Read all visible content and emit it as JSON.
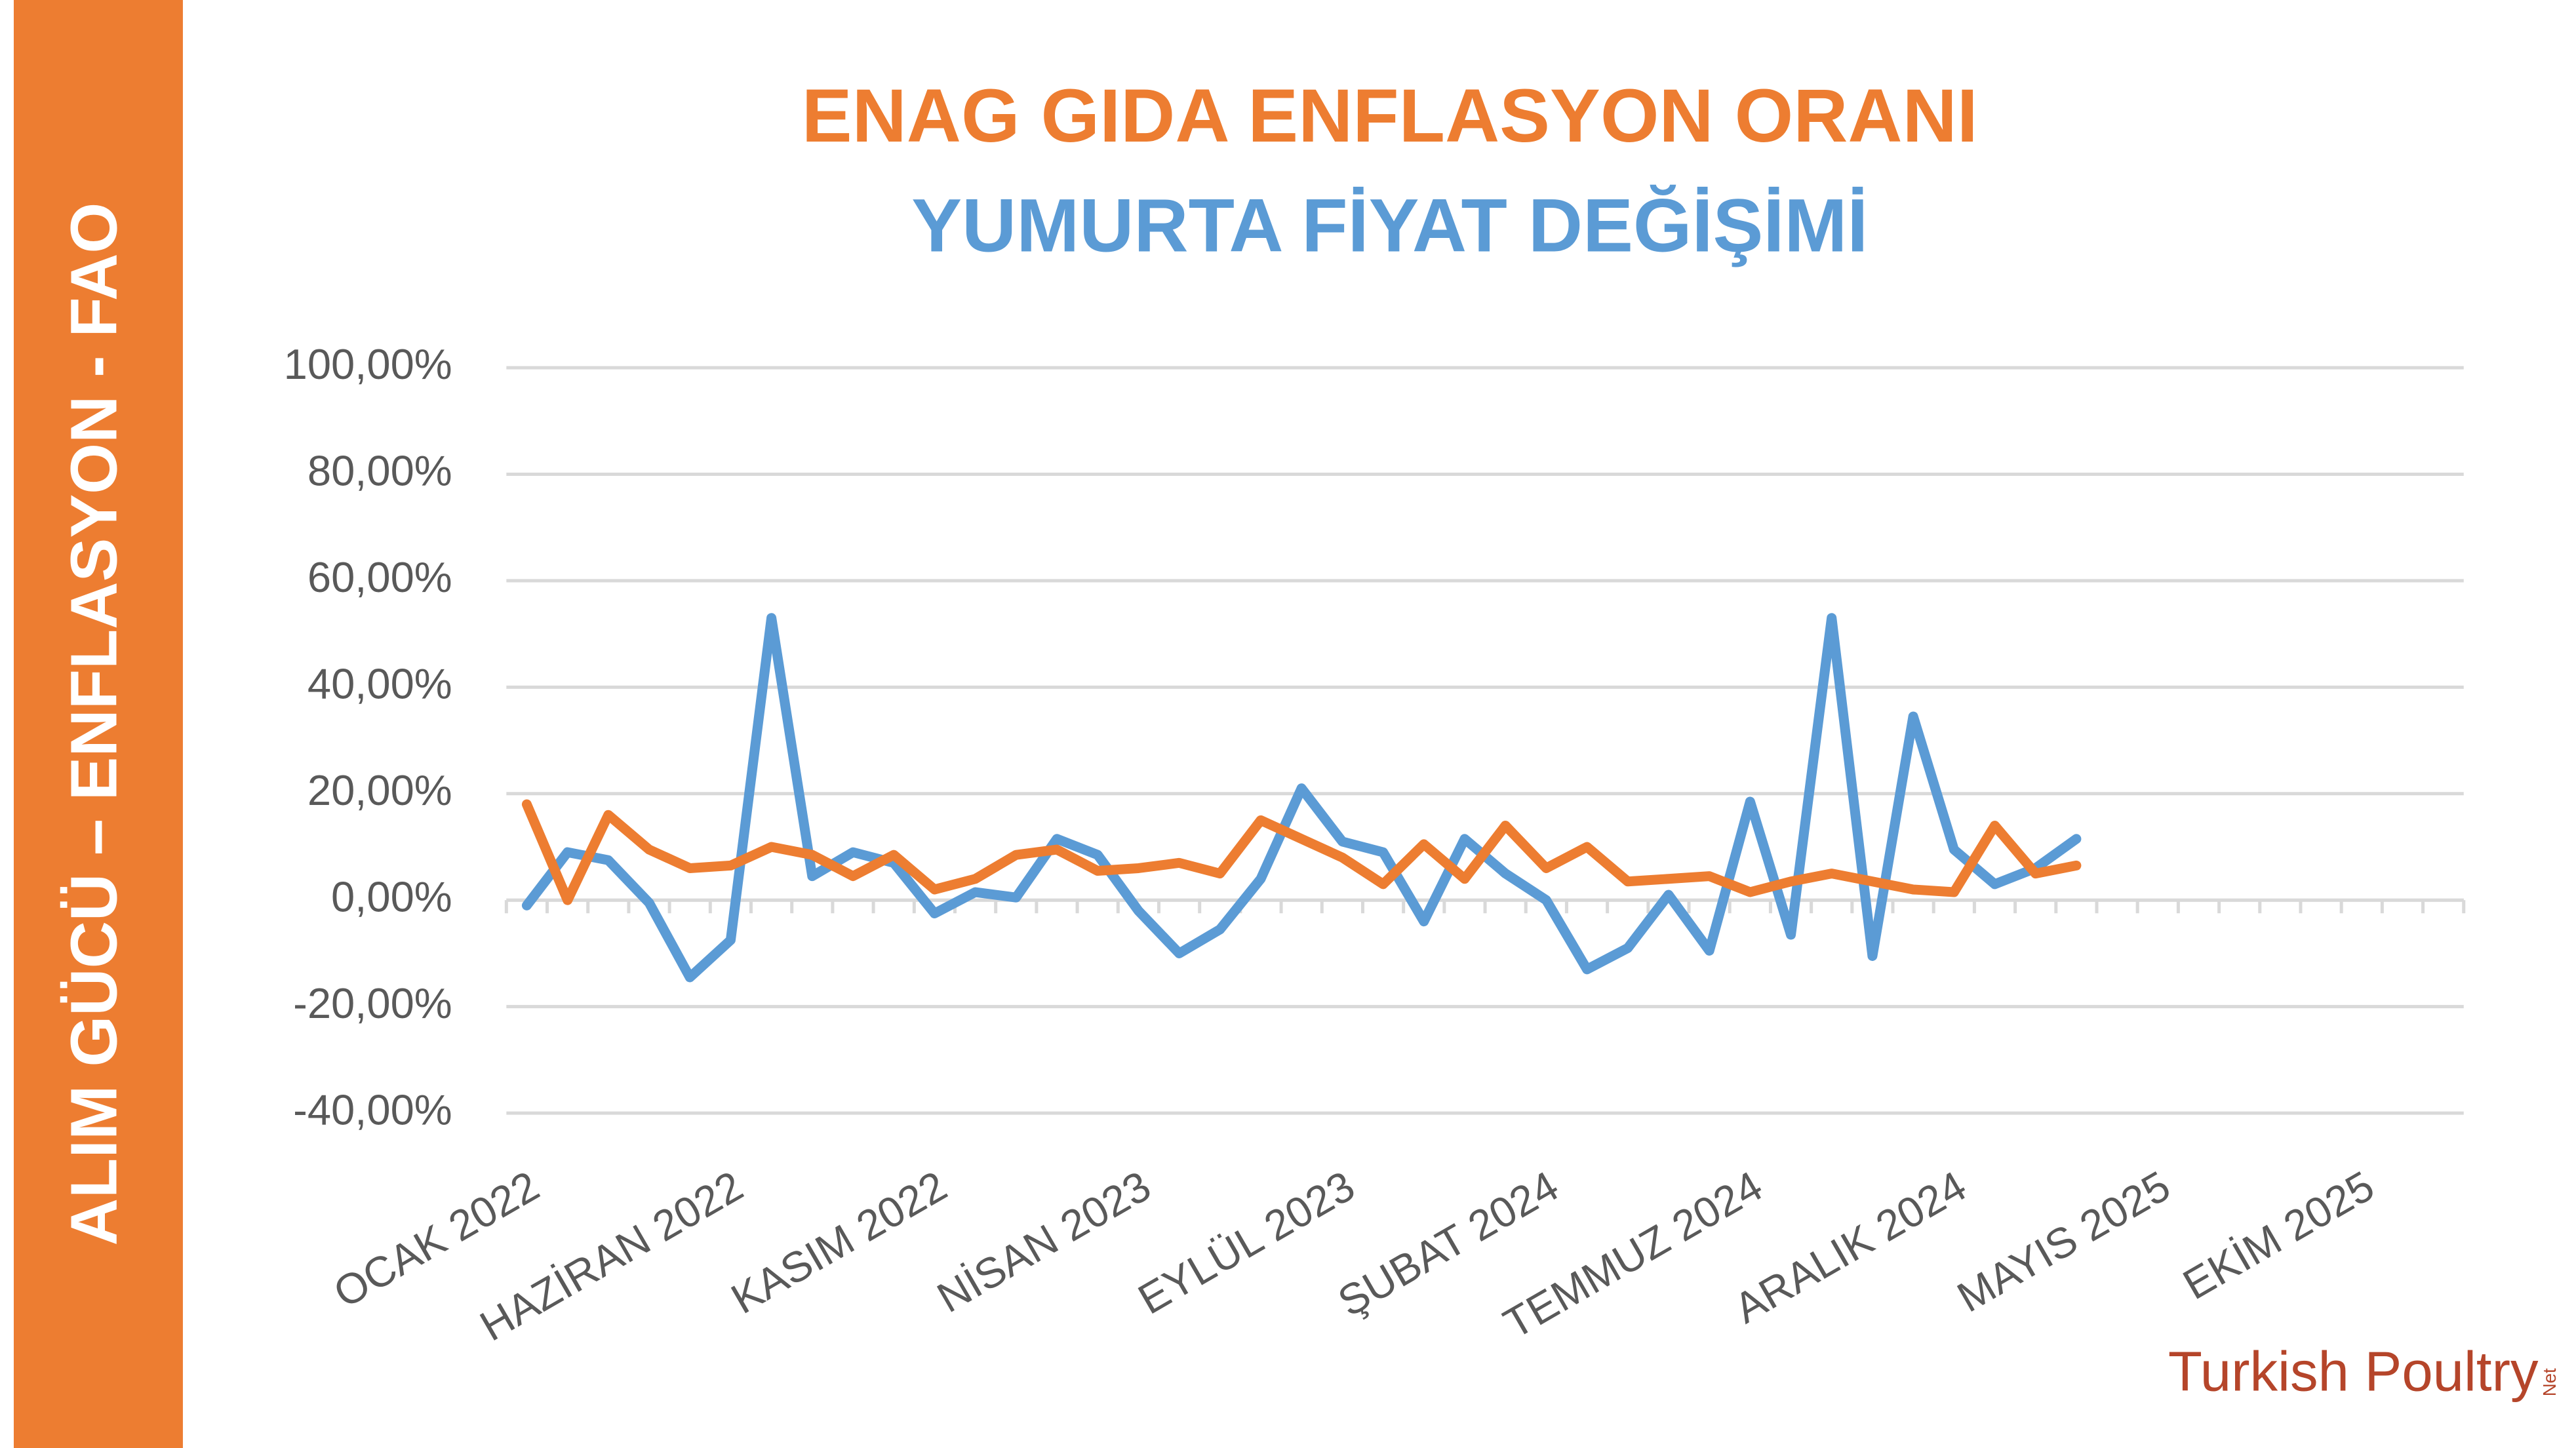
{
  "chart_data": {
    "type": "line",
    "side_label": "ALIM GÜCÜ – ENFLASYON - FAO",
    "logo": {
      "text": "Turkish Poultry",
      "suffix": "Net"
    },
    "categories": [
      "OCAK 2022",
      null,
      null,
      null,
      null,
      "HAZİRAN 2022",
      null,
      null,
      null,
      null,
      "KASIM 2022",
      null,
      null,
      null,
      null,
      "NİSAN 2023",
      null,
      null,
      null,
      null,
      "EYLÜL 2023",
      null,
      null,
      null,
      null,
      "ŞUBAT 2024",
      null,
      null,
      null,
      null,
      "TEMMUZ 2024",
      null,
      null,
      null,
      null,
      "ARALIK 2024",
      null,
      null,
      null,
      null,
      "MAYIS 2025",
      null,
      null,
      null,
      null,
      "EKİM 2025",
      null,
      null
    ],
    "series": [
      {
        "name": "YUMURTA FİYAT DEĞİŞİMİ",
        "color": "#5b9bd5",
        "values": [
          -1,
          9,
          7.5,
          -0.5,
          -14.5,
          -7.5,
          53,
          4.5,
          9,
          7,
          -2.5,
          1.5,
          0.5,
          11.5,
          8.5,
          -2,
          -10,
          -5.5,
          4,
          21,
          11,
          9,
          -4,
          11.5,
          5,
          0,
          -13,
          -9,
          1,
          -9.5,
          18.5,
          -6.5,
          53,
          -10.5,
          34.5,
          9.5,
          3,
          6,
          11.5,
          null,
          null,
          null,
          null,
          null,
          null,
          null,
          null,
          null
        ]
      },
      {
        "name": "ENAG GIDA ENFLASYON ORANI",
        "color": "#ed7d31",
        "values": [
          18,
          0,
          16,
          9.5,
          6,
          6.5,
          10,
          8.5,
          4.5,
          8.5,
          2,
          4,
          8.5,
          9.5,
          5.5,
          6,
          7,
          5,
          15,
          11.5,
          8,
          3,
          10.5,
          4,
          14,
          6,
          10,
          3.5,
          4,
          4.5,
          1.5,
          3.5,
          5,
          3.5,
          2,
          1.5,
          14,
          5,
          6.5,
          null,
          null,
          null,
          null,
          null,
          null,
          null,
          null,
          null
        ]
      }
    ],
    "ylim": [
      -40,
      100
    ],
    "yticks": [
      {
        "value": -40,
        "label": "-40,00%"
      },
      {
        "value": -20,
        "label": "-20,00%"
      },
      {
        "value": 0,
        "label": "0,00%"
      },
      {
        "value": 20,
        "label": "20,00%"
      },
      {
        "value": 40,
        "label": "40,00%"
      },
      {
        "value": 60,
        "label": "60,00%"
      },
      {
        "value": 80,
        "label": "80,00%"
      },
      {
        "value": 100,
        "label": "100,00%"
      }
    ],
    "grid": true
  }
}
